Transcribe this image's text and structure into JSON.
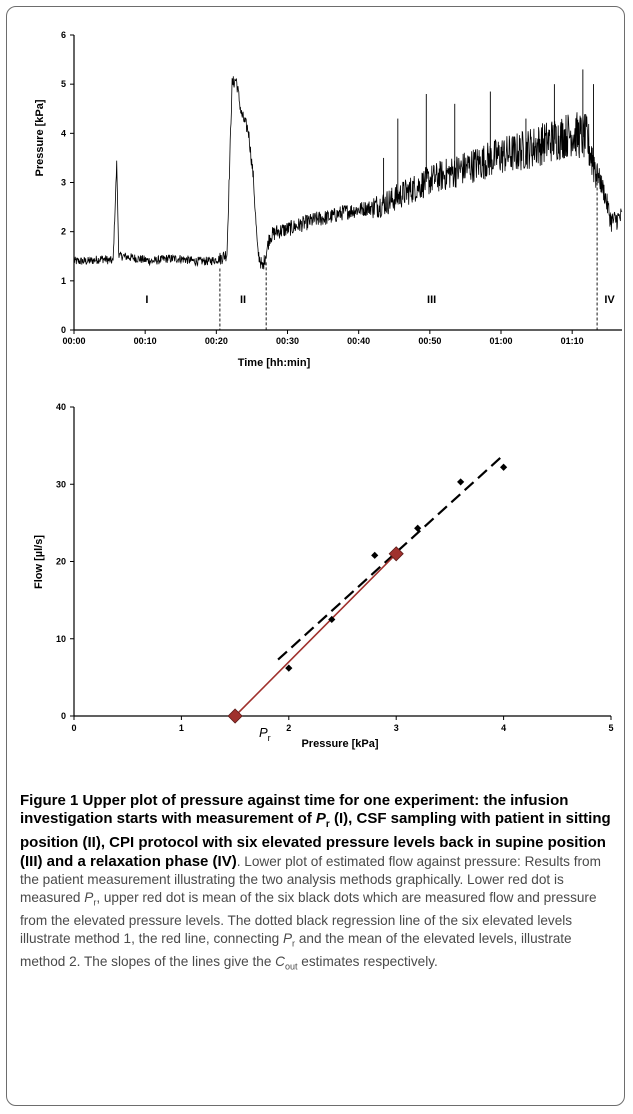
{
  "chart_data": [
    {
      "type": "line",
      "title": "",
      "xlabel": "Time [hh:min]",
      "ylabel": "Pressure [kPa]",
      "x_ticks": [
        "00:00",
        "00:10",
        "00:20",
        "00:30",
        "00:40",
        "00:50",
        "01:00",
        "01:10"
      ],
      "y_ticks": [
        "0",
        "1",
        "2",
        "3",
        "4",
        "5",
        "6"
      ],
      "xlim_minutes": [
        0,
        77
      ],
      "ylim": [
        0,
        6
      ],
      "grid": false,
      "phase_labels": [
        "I",
        "II",
        "III",
        "IV"
      ],
      "phase_boundaries_minutes": [
        20.5,
        27,
        73.5
      ],
      "series": [
        {
          "color": "#000000",
          "x_minutes": [
            0,
            2,
            4,
            5.5,
            6,
            6.3,
            7,
            9,
            11,
            13,
            15,
            17,
            19,
            20.5,
            21.5,
            22.2,
            22.8,
            23.5,
            24.5,
            25.2,
            25.8,
            26.5,
            27.5,
            28.5,
            30,
            32,
            34,
            36,
            38,
            40,
            42,
            44,
            46,
            48,
            50,
            52,
            54,
            56,
            58,
            60,
            62,
            64,
            66,
            68,
            70,
            72,
            73.5,
            74.5,
            75.5,
            77
          ],
          "values": [
            1.4,
            1.4,
            1.45,
            1.4,
            3.4,
            1.5,
            1.5,
            1.45,
            1.4,
            1.45,
            1.45,
            1.4,
            1.4,
            1.45,
            1.55,
            5.0,
            5.1,
            4.4,
            4.05,
            3.1,
            1.6,
            1.25,
            1.9,
            2.0,
            2.05,
            2.15,
            2.25,
            2.3,
            2.4,
            2.45,
            2.5,
            2.6,
            2.75,
            2.9,
            3.05,
            3.15,
            3.25,
            3.35,
            3.45,
            3.55,
            3.6,
            3.7,
            3.8,
            3.9,
            4.0,
            3.9,
            3.2,
            2.8,
            2.2,
            2.3
          ],
          "spikes": [
            [
              43.5,
              3.5
            ],
            [
              45.5,
              4.3
            ],
            [
              49.5,
              4.8
            ],
            [
              53.5,
              4.6
            ],
            [
              58.5,
              4.85
            ],
            [
              63.5,
              4.3
            ],
            [
              67.5,
              5.0
            ],
            [
              71.5,
              5.3
            ],
            [
              73,
              5.0
            ]
          ]
        }
      ]
    },
    {
      "type": "scatter",
      "title": "",
      "xlabel": "Pressure [kPa]",
      "ylabel": "Flow [µl/s]",
      "x_ticks": [
        "0",
        "1",
        "2",
        "3",
        "4",
        "5"
      ],
      "y_ticks": [
        "0",
        "10",
        "20",
        "30",
        "40"
      ],
      "xlim": [
        0,
        5
      ],
      "ylim": [
        0,
        40
      ],
      "grid": false,
      "points": [
        {
          "x": 2.0,
          "y": 6.2
        },
        {
          "x": 2.4,
          "y": 12.5
        },
        {
          "x": 2.8,
          "y": 20.8
        },
        {
          "x": 3.2,
          "y": 24.3
        },
        {
          "x": 3.6,
          "y": 30.3
        },
        {
          "x": 4.0,
          "y": 32.2
        }
      ],
      "red_points": [
        {
          "x": 1.5,
          "y": 0
        },
        {
          "x": 3.0,
          "y": 21.0
        }
      ],
      "regression_line": {
        "x": [
          1.9,
          4.0
        ],
        "y": [
          7.3,
          33.8
        ],
        "style": "dashed",
        "color": "#000000"
      },
      "red_line": {
        "x": [
          1.5,
          3.0
        ],
        "y": [
          0,
          21.0
        ],
        "color": "#a0312d"
      },
      "pr_label": {
        "main": "P",
        "sub": "r"
      }
    }
  ],
  "caption": {
    "bold_parts": [
      "Figure 1 Upper plot of pressure against time for one experiment: the infusion investigation starts with measurement of ",
      "P",
      "r",
      " (I), CSF sampling with patient in sitting position (II), CPI protocol with six elevated pressure levels back in supine position (III) and a relaxation phase (IV)"
    ],
    "text_1": ". Lower plot of estimated flow against pressure: Results from the patient measurement illustrating the two analysis methods graphically. Lower red dot is measured ",
    "pr_main": "P",
    "pr_sub": "r",
    "text_2": ", upper red dot is mean of the six black dots which are measured flow and pressure from the elevated pressure levels. The dotted black regression line of the six elevated levels illustrate method 1, the red line, connecting ",
    "text_3": " and the mean of the elevated levels, illustrate method 2. The slopes of the lines give the ",
    "cout_main": "C",
    "cout_sub": "out",
    "text_4": " estimates respectively."
  }
}
